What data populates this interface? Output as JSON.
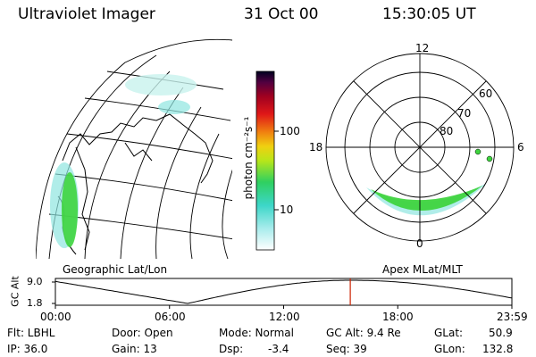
{
  "header": {
    "instrument": "Ultraviolet Imager",
    "date": "31 Oct 00",
    "time": "15:30:05 UT"
  },
  "colorbar": {
    "unit_label": "photon cm⁻²s⁻¹",
    "tick_100": "100",
    "tick_10": "10"
  },
  "polar": {
    "mlt_12": "12",
    "mlt_18": "18",
    "mlt_6": "6",
    "mlt_0": "0",
    "lat_60": "60",
    "lat_70": "70",
    "lat_80": "80"
  },
  "captions": {
    "left": "Geographic Lat/Lon",
    "right": "Apex MLat/MLT"
  },
  "altitude_plot": {
    "ylabel": "GC Alt",
    "ytick_top": "9.0",
    "ytick_bottom": "1.8",
    "xticks": [
      "00:00",
      "06:00",
      "12:00",
      "18:00",
      "23:59"
    ],
    "current_time_fraction": 0.646
  },
  "footer": {
    "row1": {
      "flt": "Flt: LBHL",
      "door": "Door: Open",
      "mode": "Mode: Normal",
      "gcalt": "GC Alt: 9.4 Re",
      "glat_label": "GLat:",
      "glat_value": "50.9"
    },
    "row2": {
      "ip": "IP: 36.0",
      "gain": "Gain: 13",
      "dsp_label": "Dsp:",
      "dsp_value": "-3.4",
      "seq": "Seq: 39",
      "glon_label": "GLon:",
      "glon_value": "132.8"
    }
  },
  "colors": {
    "aurora_green": "#3fd43f",
    "aurora_cyan": "#8fe6e0",
    "marker_red": "#cc2200"
  }
}
